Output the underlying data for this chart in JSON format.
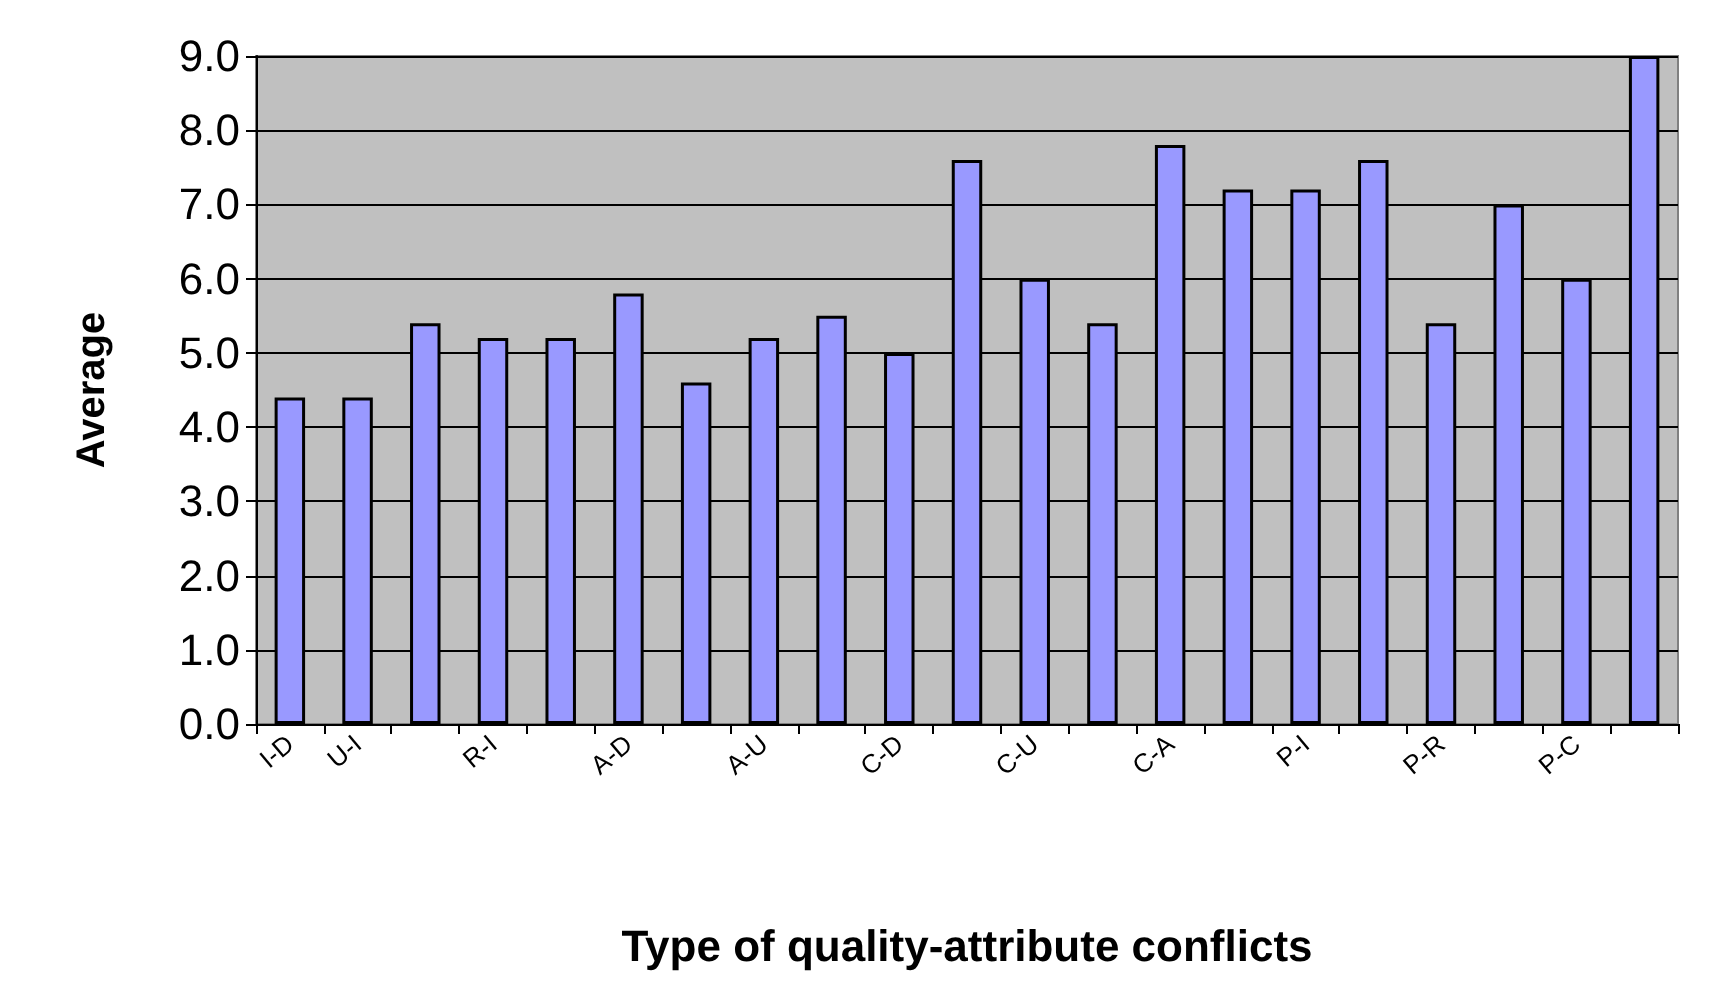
{
  "chart_data": {
    "type": "bar",
    "xlabel": "Type of quality-attribute conflicts",
    "ylabel": "Average",
    "categories": [
      "I-D",
      "U-I",
      null,
      "R-I",
      null,
      "A-D",
      null,
      "A-U",
      null,
      "C-D",
      null,
      "C-U",
      null,
      "C-A",
      null,
      "P-I",
      null,
      "P-R",
      null,
      "P-C",
      null
    ],
    "values": [
      4.4,
      4.4,
      5.4,
      5.2,
      5.2,
      5.8,
      4.6,
      5.2,
      5.5,
      5.0,
      7.6,
      6.0,
      5.4,
      7.8,
      7.2,
      7.2,
      7.6,
      5.4,
      7.0,
      6.0,
      9.0
    ],
    "color": "#9999ff",
    "ylim": [
      0,
      9
    ],
    "yticks": [
      {
        "value": 0,
        "label": "0.0"
      },
      {
        "value": 1,
        "label": "1.0"
      },
      {
        "value": 2,
        "label": "2.0"
      },
      {
        "value": 3,
        "label": "3.0"
      },
      {
        "value": 4,
        "label": "4.0"
      },
      {
        "value": 5,
        "label": "5.0"
      },
      {
        "value": 6,
        "label": "6.0"
      },
      {
        "value": 7,
        "label": "7.0"
      },
      {
        "value": 8,
        "label": "8.0"
      },
      {
        "value": 9,
        "label": "9.0"
      }
    ],
    "grid": "y"
  }
}
